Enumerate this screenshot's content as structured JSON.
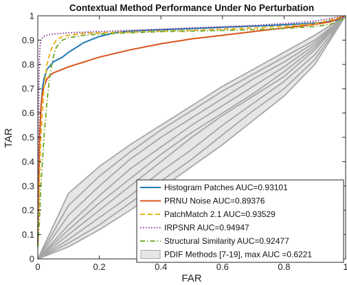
{
  "chart_data": {
    "type": "line",
    "title": "Contextual Method Performance Under No Perturbation",
    "xlabel": "FAR",
    "ylabel": "TAR",
    "xlim": [
      0,
      1
    ],
    "ylim": [
      0,
      1
    ],
    "xticks": [
      "0",
      "0.2",
      "0.4",
      "0.6",
      "0.8",
      "1"
    ],
    "yticks": [
      "0",
      "0.1",
      "0.2",
      "0.3",
      "0.4",
      "0.5",
      "0.6",
      "0.7",
      "0.8",
      "0.9",
      "1"
    ],
    "grid": false,
    "legend_position": "bottom-right",
    "series": [
      {
        "name": "Histogram Patches AUC=0.93101",
        "color": "#1f77b4",
        "style": "solid",
        "x": [
          0,
          0.003,
          0.006,
          0.01,
          0.015,
          0.02,
          0.03,
          0.05,
          0.08,
          0.1,
          0.15,
          0.2,
          0.25,
          0.28,
          0.35,
          0.45,
          0.55,
          0.65,
          0.75,
          0.85,
          0.92,
          0.97,
          1.0
        ],
        "y": [
          0.05,
          0.3,
          0.5,
          0.62,
          0.7,
          0.74,
          0.78,
          0.81,
          0.83,
          0.85,
          0.89,
          0.915,
          0.93,
          0.935,
          0.94,
          0.945,
          0.95,
          0.955,
          0.96,
          0.966,
          0.972,
          0.982,
          1.0
        ]
      },
      {
        "name": "PRNU Noise AUC=0.89376",
        "color": "#d95319",
        "style": "solid",
        "x": [
          0,
          0.003,
          0.006,
          0.01,
          0.015,
          0.02,
          0.03,
          0.04,
          0.05,
          0.07,
          0.1,
          0.15,
          0.2,
          0.3,
          0.4,
          0.5,
          0.6,
          0.7,
          0.8,
          0.9,
          0.95,
          1.0
        ],
        "y": [
          0.05,
          0.3,
          0.5,
          0.62,
          0.68,
          0.71,
          0.74,
          0.755,
          0.765,
          0.775,
          0.79,
          0.81,
          0.83,
          0.86,
          0.885,
          0.905,
          0.92,
          0.935,
          0.95,
          0.965,
          0.975,
          1.0
        ]
      },
      {
        "name": "PatchMatch 2.1 AUC=0.93529",
        "color": "#edb120",
        "style": "dashed",
        "x": [
          0,
          0.005,
          0.01,
          0.02,
          0.03,
          0.04,
          0.05,
          0.06,
          0.08,
          0.1,
          0.15,
          0.2,
          0.3,
          0.4,
          0.5,
          0.6,
          0.7,
          0.8,
          0.9,
          1.0
        ],
        "y": [
          0.05,
          0.3,
          0.5,
          0.7,
          0.8,
          0.85,
          0.88,
          0.9,
          0.915,
          0.92,
          0.928,
          0.93,
          0.933,
          0.937,
          0.94,
          0.945,
          0.95,
          0.957,
          0.967,
          1.0
        ]
      },
      {
        "name": "IRPSNR AUC=0.94947",
        "color": "#7e2f8e",
        "style": "dotted",
        "x": [
          0,
          0.002,
          0.004,
          0.006,
          0.008,
          0.01,
          0.015,
          0.02,
          0.03,
          0.05,
          0.1,
          0.2,
          0.3,
          0.4,
          0.5,
          0.6,
          0.7,
          0.8,
          0.9,
          1.0
        ],
        "y": [
          0.05,
          0.5,
          0.75,
          0.85,
          0.88,
          0.9,
          0.91,
          0.915,
          0.92,
          0.925,
          0.93,
          0.935,
          0.94,
          0.945,
          0.95,
          0.955,
          0.96,
          0.968,
          0.978,
          1.0
        ]
      },
      {
        "name": "Structural Similarity AUC=0.92477",
        "color": "#77ac30",
        "style": "dashdot",
        "x": [
          0,
          0.005,
          0.01,
          0.02,
          0.03,
          0.04,
          0.05,
          0.06,
          0.08,
          0.1,
          0.15,
          0.2,
          0.3,
          0.4,
          0.5,
          0.6,
          0.7,
          0.8,
          0.9,
          0.95,
          1.0
        ],
        "y": [
          0.05,
          0.15,
          0.3,
          0.5,
          0.65,
          0.76,
          0.83,
          0.87,
          0.9,
          0.91,
          0.92,
          0.925,
          0.93,
          0.935,
          0.937,
          0.94,
          0.943,
          0.948,
          0.956,
          0.965,
          0.99
        ]
      },
      {
        "name": "PDIF Methods [7-19], max AUC =0.6221",
        "color": "#a6a6a6",
        "style": "band",
        "band_x": [
          0,
          0.1,
          0.2,
          0.3,
          0.4,
          0.5,
          0.6,
          0.7,
          0.8,
          0.9,
          1.0
        ],
        "band_upper": [
          0,
          0.27,
          0.38,
          0.47,
          0.55,
          0.63,
          0.71,
          0.78,
          0.85,
          0.92,
          1.0
        ],
        "band_lower": [
          0,
          0.05,
          0.12,
          0.2,
          0.29,
          0.38,
          0.47,
          0.57,
          0.67,
          0.8,
          1.0
        ],
        "lines": [
          {
            "x": [
              0,
              0.1,
              0.2,
              0.3,
              0.4,
              0.5,
              0.6,
              0.7,
              0.8,
              0.9,
              1.0
            ],
            "y": [
              0,
              0.27,
              0.38,
              0.47,
              0.55,
              0.63,
              0.71,
              0.78,
              0.85,
              0.92,
              1.0
            ]
          },
          {
            "x": [
              0,
              0.1,
              0.2,
              0.3,
              0.4,
              0.5,
              0.6,
              0.7,
              0.8,
              0.9,
              1.0
            ],
            "y": [
              0,
              0.22,
              0.34,
              0.44,
              0.53,
              0.61,
              0.69,
              0.76,
              0.83,
              0.9,
              1.0
            ]
          },
          {
            "x": [
              0,
              0.1,
              0.2,
              0.3,
              0.4,
              0.5,
              0.6,
              0.7,
              0.8,
              0.9,
              1.0
            ],
            "y": [
              0,
              0.18,
              0.3,
              0.41,
              0.5,
              0.58,
              0.66,
              0.74,
              0.81,
              0.89,
              1.0
            ]
          },
          {
            "x": [
              0,
              0.1,
              0.2,
              0.3,
              0.4,
              0.5,
              0.6,
              0.7,
              0.8,
              0.9,
              1.0
            ],
            "y": [
              0,
              0.14,
              0.26,
              0.37,
              0.46,
              0.55,
              0.63,
              0.71,
              0.79,
              0.88,
              1.0
            ]
          },
          {
            "x": [
              0,
              0.1,
              0.2,
              0.3,
              0.4,
              0.5,
              0.6,
              0.7,
              0.8,
              0.9,
              1.0
            ],
            "y": [
              0,
              0.12,
              0.23,
              0.33,
              0.43,
              0.52,
              0.6,
              0.68,
              0.77,
              0.87,
              1.0
            ]
          },
          {
            "x": [
              0,
              0.1,
              0.2,
              0.3,
              0.4,
              0.5,
              0.6,
              0.7,
              0.8,
              0.9,
              1.0
            ],
            "y": [
              0,
              0.1,
              0.2,
              0.3,
              0.4,
              0.5,
              0.59,
              0.67,
              0.75,
              0.86,
              1.0
            ]
          },
          {
            "x": [
              0,
              0.1,
              0.2,
              0.3,
              0.4,
              0.5,
              0.6,
              0.7,
              0.8,
              0.9,
              1.0
            ],
            "y": [
              0,
              0.08,
              0.17,
              0.26,
              0.36,
              0.45,
              0.55,
              0.64,
              0.73,
              0.84,
              1.0
            ]
          },
          {
            "x": [
              0,
              0.1,
              0.2,
              0.3,
              0.4,
              0.5,
              0.6,
              0.7,
              0.8,
              0.9,
              1.0
            ],
            "y": [
              0,
              0.065,
              0.14,
              0.23,
              0.32,
              0.41,
              0.51,
              0.61,
              0.7,
              0.82,
              1.0
            ]
          },
          {
            "x": [
              0,
              0.1,
              0.2,
              0.3,
              0.4,
              0.5,
              0.6,
              0.7,
              0.8,
              0.9,
              1.0
            ],
            "y": [
              0,
              0.05,
              0.12,
              0.2,
              0.29,
              0.38,
              0.47,
              0.57,
              0.67,
              0.8,
              1.0
            ]
          }
        ]
      }
    ]
  }
}
